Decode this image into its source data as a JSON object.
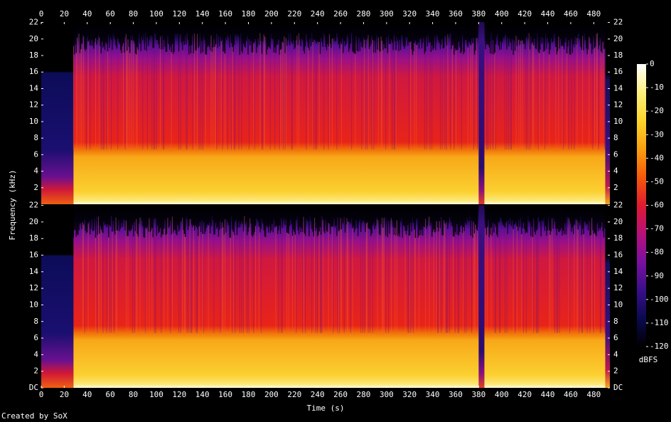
{
  "chart_data": {
    "type": "spectrogram",
    "x_label": "Time (s)",
    "y_label": "Frequency (kHz)",
    "xlim": [
      0,
      494
    ],
    "xticks": [
      0,
      20,
      40,
      60,
      80,
      100,
      120,
      140,
      160,
      180,
      200,
      220,
      240,
      260,
      280,
      300,
      320,
      340,
      360,
      380,
      400,
      420,
      440,
      460,
      480
    ],
    "channels": [
      {
        "ylim": [
          0,
          22.05
        ],
        "yticks": [
          2,
          4,
          6,
          8,
          10,
          12,
          14,
          16,
          18,
          20,
          22
        ]
      },
      {
        "ylim": [
          0,
          22.05
        ],
        "yticks": [
          {
            "value": 0,
            "label": "DC"
          },
          2,
          4,
          6,
          8,
          10,
          12,
          14,
          16,
          18,
          20,
          22
        ]
      }
    ],
    "colorbar": {
      "label": "dBFS",
      "lim": [
        -120,
        0
      ],
      "ticks": [
        0,
        -10,
        -20,
        -30,
        -40,
        -50,
        -60,
        -70,
        -80,
        -90,
        -100,
        -110,
        -120
      ],
      "colors": [
        "#000000",
        "#0a0a50",
        "#3a0f8a",
        "#7a10a0",
        "#b8107a",
        "#e01a30",
        "#f55a0a",
        "#f9a010",
        "#fbd52a",
        "#fdf080",
        "#ffffff"
      ]
    },
    "footer": "Created by SoX"
  }
}
